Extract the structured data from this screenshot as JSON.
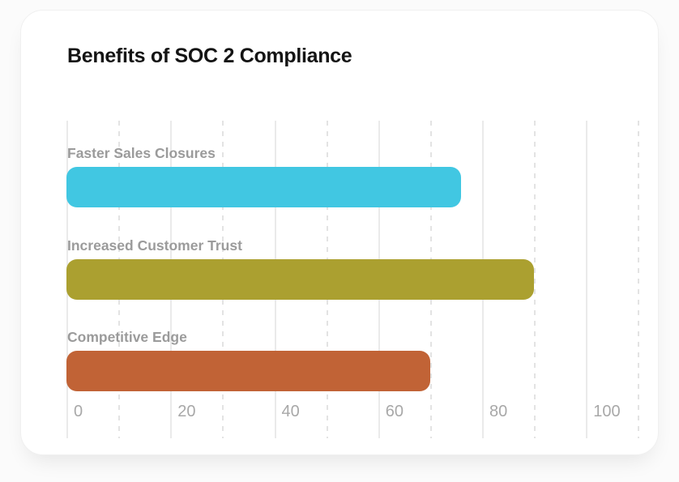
{
  "chart_data": {
    "type": "bar",
    "orientation": "horizontal",
    "title": "Benefits of SOC 2 Compliance",
    "categories": [
      "Faster Sales Closures",
      "Increased Customer Trust",
      "Competitive Edge"
    ],
    "values": [
      76,
      90,
      70
    ],
    "bar_colors": [
      "#41C7E2",
      "#ABA030",
      "#C16336"
    ],
    "xlabel": "",
    "ylabel": "",
    "xlim": [
      0,
      112
    ],
    "x_major_ticks": [
      0,
      20,
      40,
      60,
      80,
      100
    ],
    "x_tick_labels": [
      "0",
      "20",
      "40",
      "60",
      "80",
      "100"
    ],
    "x_minor_ticks": [
      10,
      30,
      50,
      70,
      90,
      110
    ],
    "grid": "vertical lines: solid at major ticks every 20, dashed at minor ticks every 10",
    "legend": "none",
    "value_labels_shown": false,
    "colors": {
      "title_text": "#141414",
      "category_label_text": "#9B9B9B",
      "tick_label_text": "#A8A8A8",
      "grid_major": "#EAEAEA",
      "grid_minor": "#E3E3E3",
      "card_background": "#FFFFFF",
      "page_background": "#FBFBFB"
    }
  }
}
